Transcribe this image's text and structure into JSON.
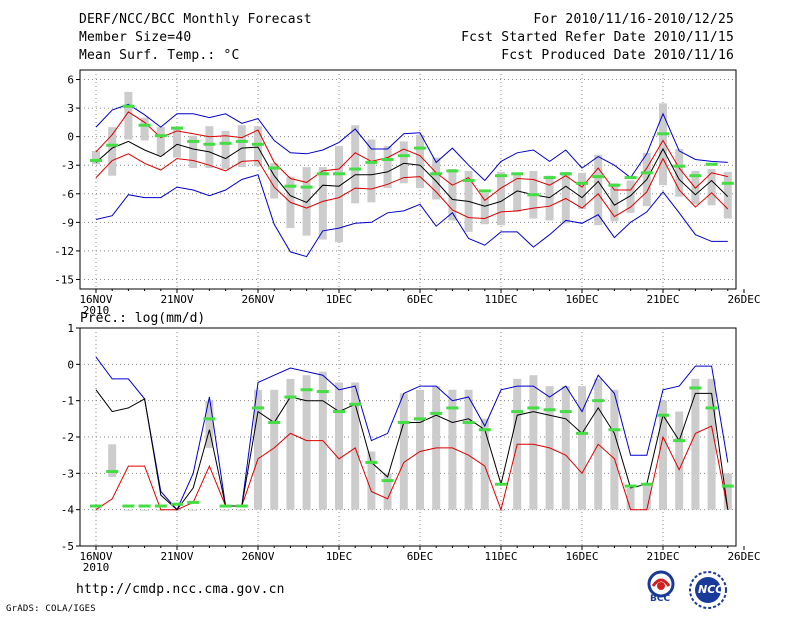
{
  "header": {
    "title": "DERF/NCC/BCC Monthly Forecast",
    "member_size": "Member Size=40",
    "variable": "Mean Surf. Temp.: °C",
    "period": "For 2010/11/16-2010/12/25",
    "started": "Fcst Started Refer Date 2010/11/15",
    "produced": "Fcst Produced Date 2010/11/16"
  },
  "footer": {
    "url": "http://cmdp.ncc.cma.gov.cn",
    "grads": "GrADS: COLA/IGES",
    "logo_bcc": "BCC",
    "logo_ncc": "NCC"
  },
  "colors": {
    "max": "#0000cc",
    "min": "#0000cc",
    "upper": "#dd0000",
    "lower": "#dd0000",
    "mean": "#000000",
    "box": "#cccccc",
    "control": "#44dd44",
    "grid": "#888888"
  },
  "x_labels": [
    {
      "day": 0,
      "text": "16NOV",
      "sub": "2010"
    },
    {
      "day": 5,
      "text": "21NOV"
    },
    {
      "day": 10,
      "text": "26NOV"
    },
    {
      "day": 15,
      "text": "1DEC"
    },
    {
      "day": 20,
      "text": "6DEC"
    },
    {
      "day": 25,
      "text": "11DEC"
    },
    {
      "day": 30,
      "text": "16DEC"
    },
    {
      "day": 35,
      "text": "21DEC"
    },
    {
      "day": 40,
      "text": "26DEC"
    }
  ],
  "chart_data": [
    {
      "type": "line",
      "title": "Mean Surf. Temp.: °C",
      "ylim": [
        -16,
        7
      ],
      "yticks": [
        6,
        3,
        0,
        -3,
        -6,
        -9,
        -12,
        -15
      ],
      "x": [
        0,
        1,
        2,
        3,
        4,
        5,
        6,
        7,
        8,
        9,
        10,
        11,
        12,
        13,
        14,
        15,
        16,
        17,
        18,
        19,
        20,
        21,
        22,
        23,
        24,
        25,
        26,
        27,
        28,
        29,
        30,
        31,
        32,
        33,
        34,
        35,
        36,
        37,
        38,
        39
      ],
      "series": [
        {
          "name": "max",
          "values": [
            1,
            2.8,
            3.4,
            2.3,
            1,
            2.4,
            2.4,
            2,
            2.4,
            1.4,
            1.9,
            -0.4,
            -1.7,
            -1.8,
            -1.4,
            -0.6,
            0.8,
            -1.3,
            -1.3,
            0.3,
            0.4,
            -2.7,
            -1.2,
            -3,
            -4.6,
            -2.6,
            -1.7,
            -1.4,
            -2.6,
            -1.4,
            -3.3,
            -2.1,
            -3,
            -4.3,
            -1.8,
            2.4,
            -1.5,
            -2.4,
            -2.6,
            -2.7
          ]
        },
        {
          "name": "upper",
          "values": [
            -1.6,
            0.2,
            2.6,
            1.5,
            -0.1,
            0.6,
            0.3,
            0,
            0.1,
            -0.1,
            0.7,
            -2.7,
            -4.4,
            -4.8,
            -3.6,
            -3.4,
            -1.7,
            -2.6,
            -2.2,
            -1.3,
            -2,
            -3.8,
            -5.1,
            -4.3,
            -6.7,
            -5.4,
            -4.4,
            -4.5,
            -5.1,
            -4.1,
            -5.3,
            -3.3,
            -5.6,
            -5.6,
            -3.3,
            -0.4,
            -3.3,
            -5.4,
            -3.8,
            -4.2
          ]
        },
        {
          "name": "mean",
          "values": [
            -2.7,
            -1.2,
            -0.5,
            -1.4,
            -2.1,
            -0.8,
            -1.3,
            -1.6,
            -2.3,
            -1.2,
            -1.1,
            -4.1,
            -6.2,
            -6.9,
            -5.1,
            -5.2,
            -4,
            -4,
            -3.7,
            -2.8,
            -3,
            -4.7,
            -6.6,
            -6.8,
            -7.3,
            -6.8,
            -5.7,
            -6.1,
            -6.4,
            -5.2,
            -6.4,
            -4.7,
            -7.2,
            -6.2,
            -4.5,
            -1.3,
            -4.5,
            -6.1,
            -4.6,
            -6.3
          ]
        },
        {
          "name": "lower",
          "values": [
            -4.3,
            -2.5,
            -1.8,
            -2.8,
            -3.5,
            -2.3,
            -2.5,
            -3,
            -3.6,
            -2.6,
            -2.5,
            -5.3,
            -6.9,
            -7.5,
            -6.8,
            -6.4,
            -5.4,
            -5.5,
            -5,
            -4.3,
            -4.2,
            -5.8,
            -7.7,
            -8.5,
            -8.6,
            -7.9,
            -7.8,
            -7.5,
            -7.3,
            -6.5,
            -7.5,
            -6,
            -8.4,
            -7.4,
            -5.8,
            -2.3,
            -5.6,
            -7.4,
            -5.9,
            -7.6
          ]
        },
        {
          "name": "min",
          "values": [
            -8.7,
            -8.3,
            -6.1,
            -6.4,
            -6.4,
            -5.3,
            -5.6,
            -6.2,
            -5.6,
            -4.5,
            -4,
            -9.2,
            -12.1,
            -12.6,
            -9.9,
            -9.6,
            -9.1,
            -9,
            -8,
            -7.8,
            -7.1,
            -9.4,
            -8,
            -10.7,
            -11.4,
            -10,
            -10,
            -11.6,
            -10.3,
            -8.8,
            -9.1,
            -8.2,
            -10.6,
            -9,
            -7.9,
            -5.8,
            -8,
            -10.3,
            -11,
            -11
          ]
        },
        {
          "name": "box_top",
          "values": [
            -1.5,
            1,
            4.7,
            2,
            1,
            0.9,
            0.1,
            1.1,
            0.6,
            1.2,
            1.1,
            -2.8,
            -4.2,
            -3.2,
            -3.2,
            -1,
            1.2,
            -0.3,
            -1,
            -0.5,
            0.2,
            -2.2,
            -3.4,
            -3.6,
            -5.9,
            -3.7,
            -3.9,
            -3.6,
            -4.1,
            -3.7,
            -3.8,
            -1.9,
            -4.9,
            -4.6,
            -1.7,
            3.5,
            -1.3,
            -3.6,
            -3.4,
            -3.7
          ]
        },
        {
          "name": "box_bottom",
          "values": [
            -2.9,
            -4.1,
            -0.3,
            -0.4,
            -2,
            -2.2,
            -3.3,
            -3.3,
            -3.4,
            -3.2,
            -3.1,
            -6.5,
            -9.6,
            -10.4,
            -10.8,
            -11.1,
            -7,
            -6.9,
            -5.4,
            -4.9,
            -5.4,
            -6.6,
            -8.8,
            -10,
            -9.2,
            -9.3,
            -7.9,
            -8.6,
            -8.8,
            -9.1,
            -7.6,
            -9.3,
            -8.9,
            -8,
            -7.3,
            -5.1,
            -6.3,
            -7.1,
            -7.2,
            -8.6
          ]
        },
        {
          "name": "control",
          "values": [
            -2.5,
            -0.9,
            3.2,
            1.2,
            0.1,
            0.9,
            -0.5,
            -0.8,
            -0.7,
            -0.5,
            -0.8,
            -3.3,
            -5.2,
            -5.3,
            -3.9,
            -3.9,
            -3.4,
            -2.7,
            -2.4,
            -2,
            -1.2,
            -3.9,
            -3.6,
            -4.6,
            -5.7,
            -4.1,
            -3.9,
            -6.1,
            -4.3,
            -3.9,
            -4.9,
            -4.2,
            -5.1,
            -4.3,
            -3.8,
            0.3,
            -3.1,
            -4.1,
            -2.9,
            -4.9
          ]
        }
      ]
    },
    {
      "type": "line",
      "title": "Prec.: log(mm/d)",
      "ylim": [
        -5,
        1
      ],
      "yticks": [
        1,
        0,
        -1,
        -2,
        -3,
        -4,
        -5
      ],
      "x": [
        0,
        1,
        2,
        3,
        4,
        5,
        6,
        7,
        8,
        9,
        10,
        11,
        12,
        13,
        14,
        15,
        16,
        17,
        18,
        19,
        20,
        21,
        22,
        23,
        24,
        25,
        26,
        27,
        28,
        29,
        30,
        31,
        32,
        33,
        34,
        35,
        36,
        37,
        38,
        39
      ],
      "series": [
        {
          "name": "max",
          "values": [
            0.2,
            -0.4,
            -0.4,
            -0.95,
            -3.5,
            -4,
            -3,
            -0.9,
            -3.9,
            -3.9,
            -0.5,
            -0.3,
            -0.1,
            -0.2,
            -0.3,
            -0.7,
            -0.6,
            -2.1,
            -1.9,
            -0.8,
            -0.6,
            -0.6,
            -1,
            -0.9,
            -1.7,
            -0.7,
            -0.6,
            -0.6,
            -0.9,
            -0.6,
            -1.3,
            -0.3,
            -0.8,
            -2.5,
            -2.5,
            -0.7,
            -0.6,
            -0.05,
            -0.05,
            -2.7
          ]
        },
        {
          "name": "mean",
          "values": [
            -0.7,
            -1.3,
            -1.2,
            -0.95,
            -3.6,
            -4,
            -3.4,
            -1.8,
            -3.9,
            -3.9,
            -1.3,
            -1.6,
            -0.9,
            -1,
            -1,
            -1.3,
            -1.1,
            -2.7,
            -3.1,
            -1.6,
            -1.6,
            -1.4,
            -1.6,
            -1.5,
            -1.8,
            -3.3,
            -1.4,
            -1.3,
            -1.4,
            -1.5,
            -1.9,
            -1.2,
            -1.9,
            -3.4,
            -3.3,
            -1.4,
            -2.1,
            -0.8,
            -0.8,
            -4
          ]
        },
        {
          "name": "lower",
          "values": [
            -4,
            -3.7,
            -2.8,
            -2.8,
            -4,
            -4,
            -3.8,
            -2.8,
            -3.9,
            -3.9,
            -2.6,
            -2.3,
            -1.9,
            -2.1,
            -2.1,
            -2.6,
            -2.3,
            -3.5,
            -3.7,
            -2.7,
            -2.4,
            -2.3,
            -2.3,
            -2.5,
            -2.8,
            -4,
            -2.2,
            -2.2,
            -2.3,
            -2.5,
            -3,
            -2.2,
            -2.6,
            -4,
            -4,
            -2,
            -2.9,
            -1.9,
            -1.7,
            -4
          ]
        },
        {
          "name": "box_top",
          "values": [
            -4,
            -2.2,
            -4,
            -4,
            -4,
            -4,
            -4,
            -1,
            -4,
            -4,
            -0.7,
            -0.7,
            -0.4,
            -0.3,
            -0.2,
            -0.5,
            -0.5,
            -2.4,
            -3,
            -0.8,
            -0.7,
            -0.6,
            -0.7,
            -0.7,
            -1.5,
            -4,
            -0.4,
            -0.3,
            -0.6,
            -0.6,
            -0.6,
            -0.4,
            -0.7,
            -3.4,
            -3.3,
            -1,
            -1.3,
            -0.4,
            -0.4,
            -3
          ]
        },
        {
          "name": "box_bottom",
          "values": [
            -4,
            -3.1,
            -4,
            -4,
            -4,
            -4,
            -4,
            -2.3,
            -4,
            -4,
            -4,
            -4,
            -4,
            -4,
            -4,
            -4,
            -4,
            -4,
            -4,
            -4,
            -4,
            -4,
            -4,
            -4,
            -4,
            -4,
            -4,
            -4,
            -4,
            -4,
            -4,
            -4,
            -4,
            -4,
            -4,
            -4,
            -4,
            -4,
            -4,
            -4
          ]
        },
        {
          "name": "control",
          "values": [
            -3.9,
            -2.95,
            -3.9,
            -3.9,
            -3.9,
            -3.85,
            -3.8,
            -1.5,
            -3.9,
            -3.9,
            -1.2,
            -1.6,
            -0.9,
            -0.7,
            -0.75,
            -1.3,
            -1.1,
            -2.7,
            -3.2,
            -1.6,
            -1.5,
            -1.35,
            -1.2,
            -1.6,
            -1.8,
            -3.3,
            -1.3,
            -1.2,
            -1.25,
            -1.3,
            -1.9,
            -1,
            -1.8,
            -3.35,
            -3.3,
            -1.4,
            -2.1,
            -0.65,
            -1.2,
            -3.35
          ]
        }
      ]
    }
  ]
}
